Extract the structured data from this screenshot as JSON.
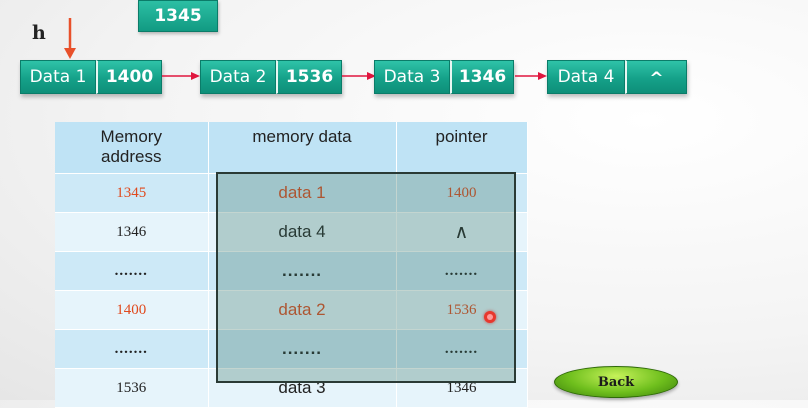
{
  "floating_node": {
    "value": "1345"
  },
  "head": {
    "label": "h"
  },
  "linked_list": [
    {
      "data": "Data 1",
      "pointer": "1400"
    },
    {
      "data": "Data 2",
      "pointer": "1536"
    },
    {
      "data": "Data 3",
      "pointer": "1346"
    },
    {
      "data": "Data 4",
      "pointer": "^"
    }
  ],
  "table": {
    "headers": [
      "Memory address",
      "memory data",
      "pointer"
    ],
    "rows": [
      {
        "address": "1345",
        "data": "data 1",
        "pointer": "1400"
      },
      {
        "address": "1346",
        "data": "data 4",
        "pointer": "∧"
      },
      {
        "address": ".......",
        "data": ".......",
        "pointer": "......."
      },
      {
        "address": "1400",
        "data": "data 2",
        "pointer": "1536"
      },
      {
        "address": ".......",
        "data": ".......",
        "pointer": "......."
      },
      {
        "address": "1536",
        "data": "data 3",
        "pointer": "1346"
      }
    ]
  },
  "back_button": {
    "label": "Back"
  },
  "colors": {
    "node_teal": "#15a189",
    "highlight_red": "#e04a1e",
    "arrow_red": "#e0163f",
    "head_arrow": "#e8502a",
    "table_blue": "#cde9f7"
  }
}
